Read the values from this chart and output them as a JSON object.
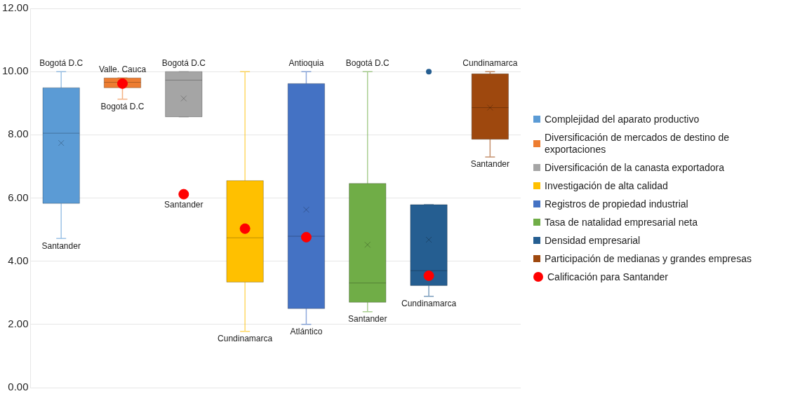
{
  "chart_data": {
    "type": "box",
    "categories": [
      null,
      null,
      null,
      null,
      null,
      null,
      null,
      null
    ],
    "ylim": [
      0,
      12
    ],
    "yticks": [
      {
        "value": 0,
        "label": "0.00"
      },
      {
        "value": 2,
        "label": "2.00"
      },
      {
        "value": 4,
        "label": "4.00"
      },
      {
        "value": 6,
        "label": "6.00"
      },
      {
        "value": 8,
        "label": "8.00"
      },
      {
        "value": 10,
        "label": "10.00"
      },
      {
        "value": 12,
        "label": "12.00"
      }
    ],
    "grid": "y",
    "legend": "right",
    "marker": "circle",
    "series": [
      {
        "name": "Complejidad del aparato productivo",
        "color": "#5b9bd5",
        "boxes": [
          {
            "low": 4.72,
            "q1": 5.83,
            "median": 8.05,
            "q3": 9.49,
            "high": 10,
            "mean": 7.74
          },
          null,
          null,
          null,
          null,
          null,
          null,
          null
        ]
      },
      {
        "name": "Diversificación de mercados de destino de exportaciones",
        "color": "#ed7d31",
        "boxes": [
          null,
          {
            "low": 9.13,
            "q1": 9.49,
            "median": 9.66,
            "q3": 9.8,
            "high": 9.8
          },
          null,
          null,
          null,
          null,
          null,
          null
        ]
      },
      {
        "name": "Diversificación de la canasta exportadora",
        "color": "#a5a5a5",
        "boxes": [
          null,
          null,
          {
            "low": 8.57,
            "q1": 8.57,
            "median": 9.73,
            "q3": 10,
            "high": 10,
            "mean": 9.15
          },
          null,
          null,
          null,
          null,
          null
        ]
      },
      {
        "name": "Investigación de alta calidad",
        "color": "#ffc000",
        "boxes": [
          null,
          null,
          null,
          {
            "low": 1.78,
            "q1": 3.34,
            "median": 4.74,
            "q3": 6.55,
            "high": 10,
            "mean": 5.08
          },
          null,
          null,
          null,
          null
        ]
      },
      {
        "name": "Registros de propiedad industrial",
        "color": "#4472c4",
        "boxes": [
          null,
          null,
          null,
          null,
          {
            "low": 2.0,
            "q1": 2.5,
            "median": 4.79,
            "q3": 9.62,
            "high": 10,
            "mean": 5.63
          },
          null,
          null,
          null
        ]
      },
      {
        "name": "Tasa de natalidad empresarial neta",
        "color": "#70ad47",
        "boxes": [
          null,
          null,
          null,
          null,
          null,
          {
            "low": 2.4,
            "q1": 2.7,
            "median": 3.31,
            "q3": 6.46,
            "high": 10,
            "mean": 4.52
          },
          null,
          null
        ]
      },
      {
        "name": "Densidad empresarial",
        "color": "#255e91",
        "boxes": [
          null,
          null,
          null,
          null,
          null,
          null,
          {
            "low": 2.89,
            "q1": 3.23,
            "median": 3.7,
            "q3": 5.79,
            "high": 5.79,
            "mean": 4.68,
            "outliers": [
              10
            ]
          },
          null
        ]
      },
      {
        "name": "Participación de medianas y grandes empresas",
        "color": "#9e480e",
        "boxes": [
          null,
          null,
          null,
          null,
          null,
          null,
          null,
          {
            "low": 7.3,
            "q1": 7.86,
            "median": 8.86,
            "q3": 9.93,
            "high": 10,
            "mean": 8.86
          }
        ]
      },
      {
        "name": "Calificación para Santander",
        "type": "scatter",
        "color": "#ff0000",
        "values": [
          null,
          9.62,
          6.12,
          5.03,
          4.76,
          null,
          3.54,
          null
        ]
      }
    ],
    "annotations": [
      "Bogotá D.C",
      "Santander",
      "Valle. Cauca",
      "Bogotá D.C",
      "Bogotá D.C",
      "Santander",
      "Cundinamarca",
      "Antioquia",
      "Atlántico",
      "Bogotá D.C",
      "Santander",
      "Cundinamarca",
      "Cundinamarca",
      "Santander"
    ]
  }
}
